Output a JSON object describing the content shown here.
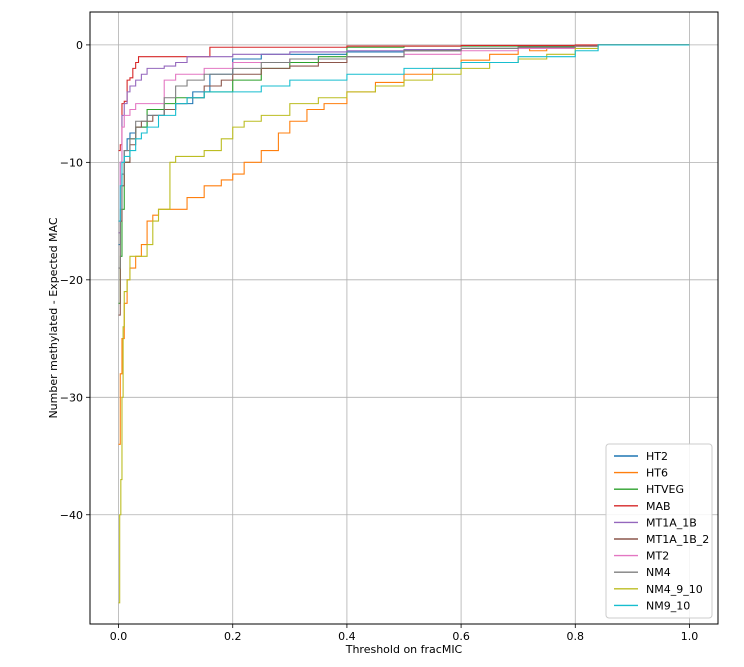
{
  "chart_data": {
    "type": "line",
    "title": "",
    "xlabel": "Threshold on fracMIC",
    "ylabel": "Number methylated - Expected MAC",
    "xlim": [
      -0.05,
      1.05
    ],
    "ylim": [
      -49.3,
      2.8
    ],
    "xticks": [
      0.0,
      0.2,
      0.4,
      0.6,
      0.8,
      1.0
    ],
    "xtick_labels": [
      "0.0",
      "0.2",
      "0.4",
      "0.6",
      "0.8",
      "1.0"
    ],
    "yticks": [
      -40,
      -30,
      -20,
      -10,
      0
    ],
    "ytick_labels": [
      "−40",
      "−30",
      "−20",
      "−10",
      "0"
    ],
    "grid": true,
    "legend_position": "lower-right",
    "series": [
      {
        "name": "HT2",
        "color": "#1f77b4",
        "x": [
          0,
          0.003,
          0.006,
          0.01,
          0.015,
          0.02,
          0.03,
          0.05,
          0.08,
          0.1,
          0.13,
          0.16,
          0.2,
          0.25,
          0.3,
          0.4,
          0.5,
          0.6,
          0.7,
          0.8,
          0.84,
          1.0
        ],
        "y": [
          -17,
          -15,
          -11,
          -9,
          -8,
          -7.5,
          -7,
          -6,
          -5.5,
          -5,
          -4,
          -2.5,
          -1.2,
          -0.8,
          -0.8,
          -0.6,
          -0.5,
          -0.3,
          -0.2,
          -0.05,
          0,
          0
        ]
      },
      {
        "name": "HT6",
        "color": "#ff7f0e",
        "x": [
          0,
          0.003,
          0.006,
          0.01,
          0.015,
          0.02,
          0.03,
          0.04,
          0.05,
          0.06,
          0.07,
          0.08,
          0.1,
          0.12,
          0.15,
          0.18,
          0.2,
          0.22,
          0.25,
          0.28,
          0.3,
          0.33,
          0.36,
          0.4,
          0.45,
          0.5,
          0.55,
          0.6,
          0.65,
          0.7,
          0.72,
          0.75,
          0.8,
          0.84,
          1.0
        ],
        "y": [
          -34,
          -28,
          -25,
          -22,
          -20,
          -19,
          -18,
          -17,
          -15,
          -14.5,
          -14,
          -14,
          -14,
          -13,
          -12,
          -11.5,
          -11,
          -10,
          -9,
          -7.5,
          -6.5,
          -5.5,
          -5,
          -4,
          -3.2,
          -2.5,
          -2,
          -1.3,
          -0.8,
          -0.2,
          -0.5,
          -0.3,
          -0.1,
          0,
          0
        ]
      },
      {
        "name": "HTVEG",
        "color": "#2ca02c",
        "x": [
          0,
          0.003,
          0.006,
          0.01,
          0.02,
          0.03,
          0.05,
          0.08,
          0.1,
          0.13,
          0.15,
          0.2,
          0.25,
          0.3,
          0.35,
          0.4,
          0.5,
          0.6,
          0.7,
          0.8,
          0.84,
          1.0
        ],
        "y": [
          -22,
          -18,
          -14,
          -10,
          -8,
          -7,
          -5.5,
          -5,
          -4.5,
          -4.5,
          -4,
          -3,
          -2,
          -1.5,
          -1,
          -0.2,
          -0.1,
          -0.1,
          -0.1,
          -0.05,
          0,
          0
        ]
      },
      {
        "name": "MAB",
        "color": "#d62728",
        "x": [
          0,
          0.003,
          0.006,
          0.01,
          0.015,
          0.02,
          0.025,
          0.03,
          0.035,
          0.05,
          0.08,
          0.1,
          0.15,
          0.16,
          0.2,
          0.4,
          0.6,
          0.8,
          0.84,
          1.0
        ],
        "y": [
          -9,
          -8.5,
          -5,
          -4.8,
          -3,
          -2.8,
          -2,
          -1.5,
          -1,
          -1,
          -1,
          -1,
          -1,
          -0.2,
          -0.2,
          -0.1,
          -0.05,
          0,
          0,
          0
        ]
      },
      {
        "name": "MT1A_1B",
        "color": "#9467bd",
        "x": [
          0,
          0.003,
          0.006,
          0.01,
          0.015,
          0.02,
          0.03,
          0.04,
          0.05,
          0.06,
          0.08,
          0.1,
          0.12,
          0.2,
          0.3,
          0.4,
          0.5,
          0.6,
          0.7,
          0.8,
          0.84,
          1.0
        ],
        "y": [
          -16,
          -10,
          -6,
          -5,
          -4,
          -3.5,
          -3,
          -2.5,
          -2,
          -2,
          -1.8,
          -1.5,
          -1,
          -0.8,
          -0.6,
          -0.5,
          -0.4,
          -0.3,
          -0.2,
          -0.1,
          0,
          0
        ]
      },
      {
        "name": "MT1A_1B_2",
        "color": "#8c564b",
        "x": [
          0,
          0.003,
          0.006,
          0.01,
          0.02,
          0.03,
          0.04,
          0.06,
          0.08,
          0.1,
          0.12,
          0.15,
          0.18,
          0.2,
          0.25,
          0.3,
          0.35,
          0.4,
          0.5,
          0.6,
          0.7,
          0.8,
          0.84,
          1.0
        ],
        "y": [
          -23,
          -15,
          -12,
          -10,
          -8.5,
          -7,
          -6.5,
          -6,
          -5.5,
          -5,
          -4.5,
          -3.5,
          -3,
          -2.5,
          -2,
          -1.8,
          -1.5,
          -1,
          -0.5,
          -0.3,
          -0.2,
          -0.1,
          0,
          0
        ]
      },
      {
        "name": "MT2",
        "color": "#e377c2",
        "x": [
          0,
          0.003,
          0.006,
          0.01,
          0.02,
          0.03,
          0.05,
          0.08,
          0.1,
          0.15,
          0.2,
          0.3,
          0.4,
          0.5,
          0.6,
          0.7,
          0.8,
          0.84,
          1.0
        ],
        "y": [
          -15,
          -10,
          -7,
          -6,
          -5.5,
          -5,
          -5,
          -3,
          -2.5,
          -2,
          -1.5,
          -1.2,
          -1,
          -0.8,
          -0.5,
          -0.3,
          -0.1,
          0,
          0
        ]
      },
      {
        "name": "NM4",
        "color": "#7f7f7f",
        "x": [
          0,
          0.003,
          0.006,
          0.01,
          0.02,
          0.03,
          0.05,
          0.08,
          0.1,
          0.12,
          0.15,
          0.2,
          0.25,
          0.3,
          0.4,
          0.5,
          0.6,
          0.7,
          0.8,
          0.84,
          1.0
        ],
        "y": [
          -19,
          -14,
          -11,
          -9,
          -8,
          -6.5,
          -6,
          -4.5,
          -3.5,
          -3,
          -2.5,
          -2,
          -1.5,
          -1.2,
          -1,
          -0.5,
          -0.3,
          -0.2,
          -0.1,
          0,
          0
        ]
      },
      {
        "name": "NM4_9_10",
        "color": "#bcbd22",
        "x": [
          0,
          0.002,
          0.004,
          0.006,
          0.008,
          0.01,
          0.015,
          0.02,
          0.03,
          0.04,
          0.05,
          0.06,
          0.07,
          0.08,
          0.09,
          0.1,
          0.15,
          0.18,
          0.2,
          0.22,
          0.25,
          0.3,
          0.35,
          0.4,
          0.45,
          0.5,
          0.55,
          0.6,
          0.65,
          0.7,
          0.75,
          0.8,
          0.84,
          1.0
        ],
        "y": [
          -47.5,
          -40,
          -37,
          -30,
          -24,
          -21,
          -20,
          -18,
          -18,
          -18,
          -17,
          -15,
          -14,
          -14,
          -10,
          -9.5,
          -9,
          -8,
          -7,
          -6.5,
          -6,
          -5,
          -4.5,
          -4,
          -3.5,
          -3,
          -2.5,
          -2,
          -1.5,
          -1.2,
          -0.8,
          -0.3,
          0,
          0
        ]
      },
      {
        "name": "NM9_10",
        "color": "#17becf",
        "x": [
          0,
          0.003,
          0.006,
          0.01,
          0.02,
          0.03,
          0.04,
          0.05,
          0.07,
          0.1,
          0.12,
          0.15,
          0.2,
          0.25,
          0.3,
          0.35,
          0.4,
          0.5,
          0.6,
          0.7,
          0.8,
          0.84,
          1.0
        ],
        "y": [
          -15,
          -12,
          -10,
          -9.5,
          -9,
          -8,
          -7.5,
          -7,
          -6,
          -5,
          -4.5,
          -4,
          -4,
          -3.5,
          -3,
          -3,
          -2.5,
          -2,
          -1.5,
          -1,
          -0.5,
          0,
          0
        ]
      }
    ]
  }
}
